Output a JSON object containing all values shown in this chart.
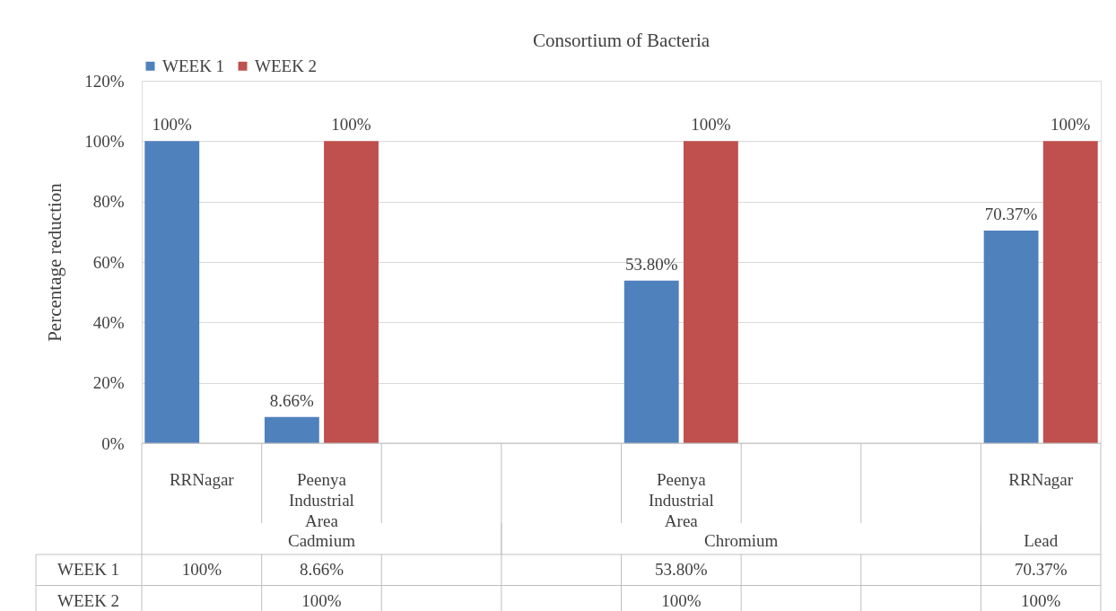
{
  "chart_data": {
    "type": "bar",
    "title": "Consortium of Bacteria",
    "ylabel": "Percentage reduction",
    "categories": [
      "RRNagar",
      "Peenya Industrial Area",
      null,
      null,
      "Peenya Industrial Area",
      null,
      null,
      "RRNagar"
    ],
    "series": [
      {
        "name": "WEEK 1",
        "color": "#4f81bd",
        "values": [
          100,
          8.66,
          null,
          null,
          53.8,
          null,
          null,
          70.37
        ],
        "value_labels": [
          "100%",
          "8.66%",
          null,
          null,
          "53.80%",
          null,
          null,
          "70.37%"
        ]
      },
      {
        "name": "WEEK 2",
        "color": "#c0504d",
        "values": [
          null,
          100,
          null,
          null,
          100,
          null,
          null,
          100
        ],
        "value_labels": [
          null,
          "100%",
          null,
          null,
          "100%",
          null,
          null,
          "100%"
        ]
      }
    ],
    "annotations": [
      "Cadmium",
      "Chromium",
      "Lead"
    ],
    "ylim": [
      0,
      120
    ],
    "yticks": [
      {
        "value": 0,
        "label": "0%"
      },
      {
        "value": 20,
        "label": "20%"
      },
      {
        "value": 40,
        "label": "40%"
      },
      {
        "value": 60,
        "label": "60%"
      },
      {
        "value": 80,
        "label": "80%"
      },
      {
        "value": 100,
        "label": "100%"
      },
      {
        "value": 120,
        "label": "120%"
      }
    ],
    "grid": "y",
    "legend": "top"
  }
}
